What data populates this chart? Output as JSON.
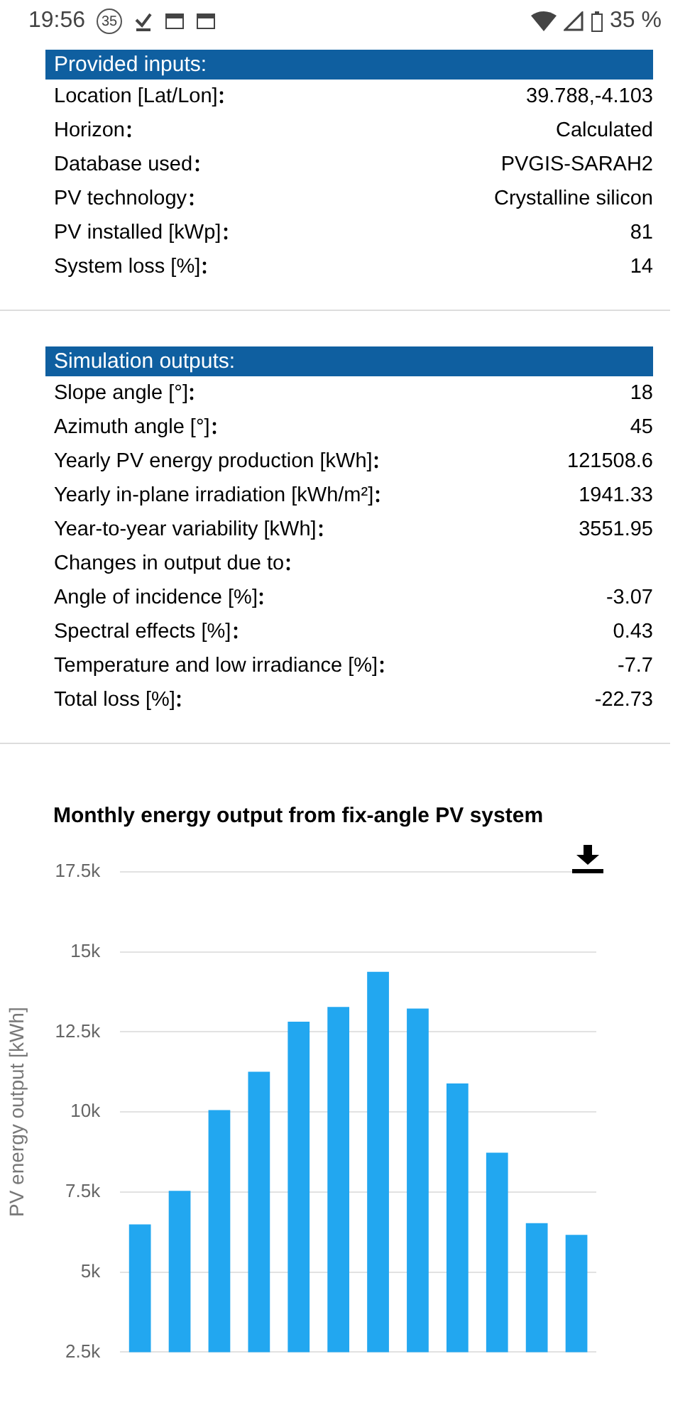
{
  "chart_data": [
    {
      "type": "other",
      "title": "Provided inputs:",
      "annotations": [
        "19:56",
        "35",
        "35 %"
      ],
      "categories": [
        "Location [Lat/Lon]",
        "Horizon",
        "Database used",
        "PV technology",
        "PV installed [kWp]",
        "System loss [%]"
      ],
      "value_labels": [
        "39.788,-4.103",
        "Calculated",
        "PVGIS-SARAH2",
        "Crystalline silicon",
        "81",
        "14"
      ]
    },
    {
      "type": "other",
      "title": "Simulation outputs:",
      "categories": [
        "Slope angle [°]",
        "Azimuth angle [°]",
        "Yearly PV energy production [kWh]",
        "Yearly in-plane irradiation [kWh/m²]",
        "Year-to-year variability [kWh]",
        "Changes in output due to",
        "Angle of incidence [%]",
        "Spectral effects [%]",
        "Temperature and low irradiance [%]",
        "Total loss [%]"
      ],
      "value_labels": [
        "18",
        "45",
        "121508.6",
        "1941.33",
        "3551.95",
        null,
        "-3.07",
        "0.43",
        "-7.7",
        "-22.73"
      ]
    },
    {
      "type": "bar",
      "title": "Monthly energy output from fix-angle PV system",
      "ylabel": "PV energy output [kWh]",
      "categories": [
        null,
        null,
        null,
        null,
        null,
        null,
        null,
        null,
        null,
        null,
        null,
        null
      ],
      "values": [
        6490,
        7540,
        10060,
        11260,
        12820,
        13280,
        14380,
        13230,
        10890,
        8730,
        6530,
        6160
      ],
      "color": "#22a7f0",
      "ylim": [
        2500,
        17500
      ],
      "yticks": [
        {
          "value": 2500,
          "label": "2.5k"
        },
        {
          "value": 5000,
          "label": "5k"
        },
        {
          "value": 7500,
          "label": "7.5k"
        },
        {
          "value": 10000,
          "label": "10k"
        },
        {
          "value": 12500,
          "label": "12.5k"
        },
        {
          "value": 15000,
          "label": "15k"
        },
        {
          "value": 17500,
          "label": "17.5k"
        }
      ],
      "grid": "y",
      "legend": false
    }
  ]
}
